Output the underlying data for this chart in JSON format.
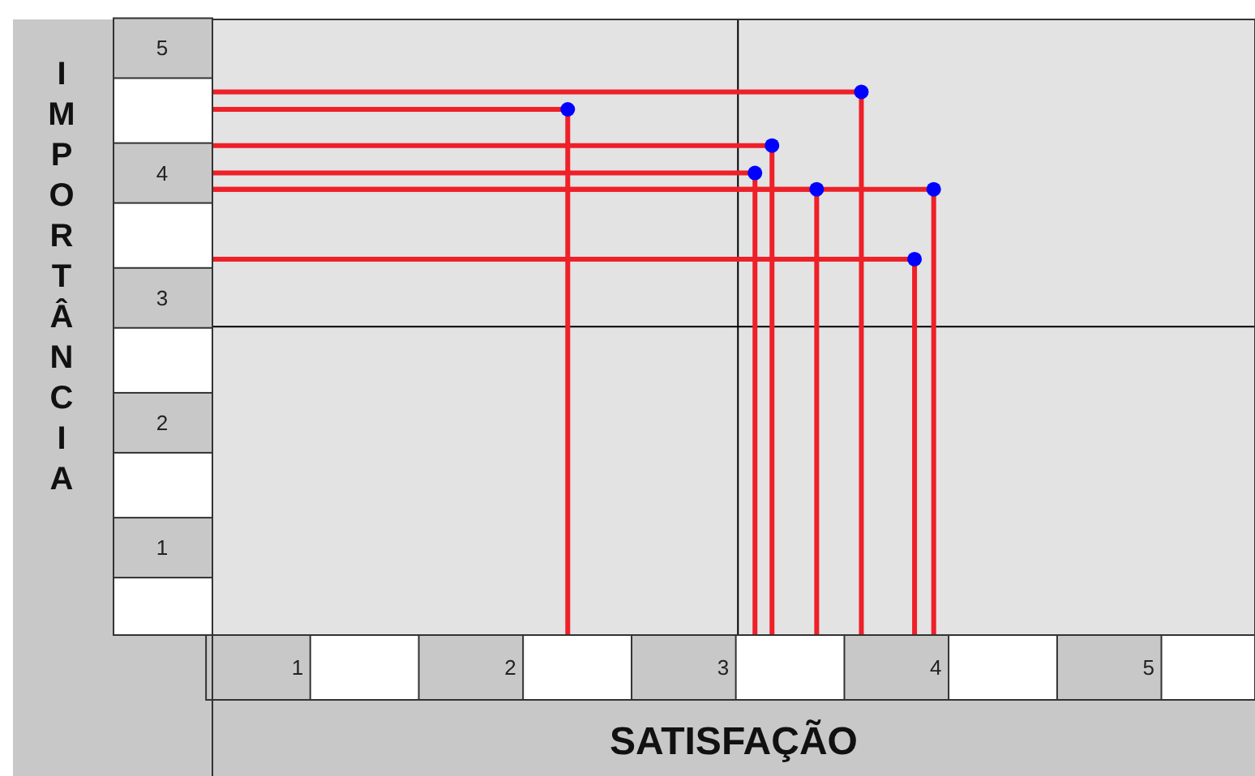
{
  "chart_data": {
    "type": "scatter",
    "xlabel": "SATISFAÇÃO",
    "ylabel": "IMPORTÂNCIA",
    "xlim": [
      0.6,
      5.5
    ],
    "ylim": [
      0.3,
      5.23
    ],
    "xticks": [
      1,
      2,
      3,
      4,
      5
    ],
    "yticks": [
      1,
      2,
      3,
      4,
      5
    ],
    "marker": "circle",
    "grid": false,
    "series": [
      {
        "color": "#0000ff",
        "x": [
          3.65,
          2.27,
          3.23,
          3.15,
          3.44,
          3.99,
          3.9
        ],
        "values": [
          4.65,
          4.51,
          4.22,
          4.0,
          3.87,
          3.87,
          3.31
        ],
        "errors": [
          [
            0.3,
            4.65
          ],
          [
            0.3,
            4.51
          ],
          [
            0.3,
            4.22
          ],
          [
            0.3,
            4.0
          ],
          [
            0.3,
            3.87
          ],
          [
            0.3,
            3.87
          ],
          [
            0.3,
            3.31
          ]
        ],
        "xerrors": [
          [
            0.6,
            3.65
          ],
          [
            0.6,
            2.27
          ],
          [
            0.6,
            3.23
          ],
          [
            0.6,
            3.15
          ],
          [
            0.6,
            3.44
          ],
          [
            0.6,
            3.99
          ],
          [
            0.6,
            3.9
          ]
        ]
      }
    ],
    "ref_lines": [
      {
        "axis": "x",
        "value": 3.07,
        "color": "#000000"
      },
      {
        "axis": "y",
        "value": 2.77,
        "color": "#000000"
      }
    ]
  }
}
